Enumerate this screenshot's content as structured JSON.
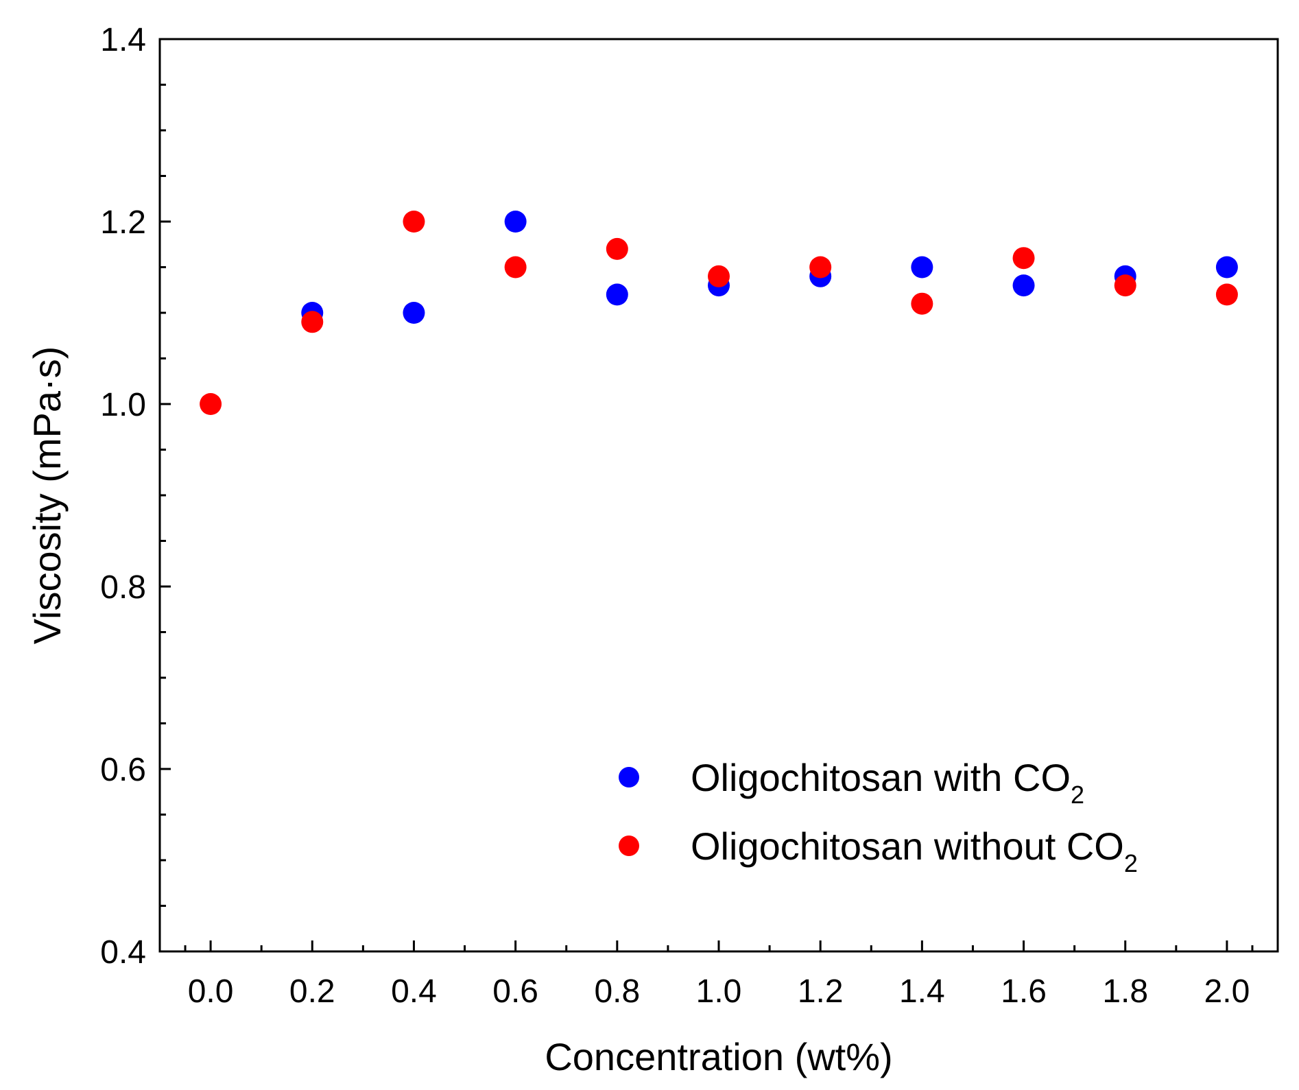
{
  "chart_data": {
    "type": "scatter",
    "title": "",
    "xlabel": "Concentration (wt%)",
    "ylabel": "Viscosity (mPa·s)",
    "xlim": [
      -0.1,
      2.1
    ],
    "ylim": [
      0.4,
      1.4
    ],
    "xticks": [
      0.0,
      0.2,
      0.4,
      0.6,
      0.8,
      1.0,
      1.2,
      1.4,
      1.6,
      1.8,
      2.0
    ],
    "xtick_labels": [
      "0.0",
      "0.2",
      "0.4",
      "0.6",
      "0.8",
      "1.0",
      "1.2",
      "1.4",
      "1.6",
      "1.8",
      "2.0"
    ],
    "yticks": [
      0.4,
      0.6,
      0.8,
      1.0,
      1.2,
      1.4
    ],
    "ytick_labels": [
      "0.4",
      "0.6",
      "0.8",
      "1.0",
      "1.2",
      "1.4"
    ],
    "grid": false,
    "legend_position": "bottom-right",
    "series": [
      {
        "name": "Oligochitosan with CO2",
        "label_main": "Oligochitosan with CO",
        "label_sub": "2",
        "color": "#0000ff",
        "x": [
          0.2,
          0.4,
          0.6,
          0.8,
          1.0,
          1.2,
          1.4,
          1.6,
          1.8,
          2.0
        ],
        "y": [
          1.1,
          1.1,
          1.2,
          1.12,
          1.13,
          1.14,
          1.15,
          1.13,
          1.14,
          1.15
        ]
      },
      {
        "name": "Oligochitosan without CO2",
        "label_main": "Oligochitosan without CO",
        "label_sub": "2",
        "color": "#ff0000",
        "x": [
          0.0,
          0.2,
          0.4,
          0.6,
          0.8,
          1.0,
          1.2,
          1.4,
          1.6,
          1.8,
          2.0
        ],
        "y": [
          1.0,
          1.09,
          1.2,
          1.15,
          1.17,
          1.14,
          1.15,
          1.11,
          1.16,
          1.13,
          1.12
        ]
      }
    ]
  }
}
